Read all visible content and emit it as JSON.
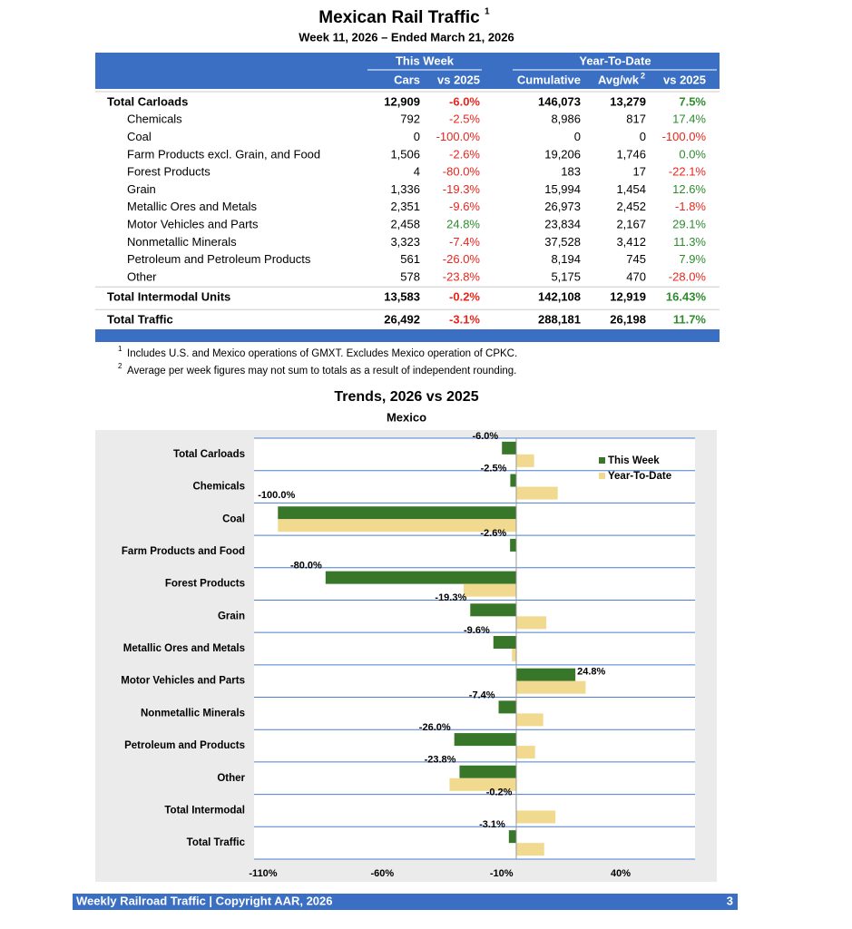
{
  "header": {
    "title": "Mexican Rail Traffic",
    "title_note": "1",
    "subtitle": "Week 11, 2026 – Ended March 21, 2026"
  },
  "table": {
    "groups": [
      "This Week",
      "Year-To-Date"
    ],
    "columns": [
      "Cars",
      "vs 2025",
      "Cumulative",
      "Avg/wk",
      "vs 2025"
    ],
    "avg_note": "2",
    "rows": [
      {
        "label": "Total Carloads",
        "bold": true,
        "cells": [
          "12,909",
          "-6.0%",
          "146,073",
          "13,279",
          "7.5%"
        ]
      },
      {
        "label": "Chemicals",
        "cells": [
          "792",
          "-2.5%",
          "8,986",
          "817",
          "17.4%"
        ]
      },
      {
        "label": "Coal",
        "cells": [
          "0",
          "-100.0%",
          "0",
          "0",
          "-100.0%"
        ]
      },
      {
        "label": "Farm Products excl. Grain, and Food",
        "cells": [
          "1,506",
          "-2.6%",
          "19,206",
          "1,746",
          "0.0%"
        ]
      },
      {
        "label": "Forest Products",
        "cells": [
          "4",
          "-80.0%",
          "183",
          "17",
          "-22.1%"
        ]
      },
      {
        "label": "Grain",
        "cells": [
          "1,336",
          "-19.3%",
          "15,994",
          "1,454",
          "12.6%"
        ]
      },
      {
        "label": "Metallic Ores and Metals",
        "cells": [
          "2,351",
          "-9.6%",
          "26,973",
          "2,452",
          "-1.8%"
        ]
      },
      {
        "label": "Motor Vehicles and Parts",
        "cells": [
          "2,458",
          "24.8%",
          "23,834",
          "2,167",
          "29.1%"
        ]
      },
      {
        "label": "Nonmetallic Minerals",
        "cells": [
          "3,323",
          "-7.4%",
          "37,528",
          "3,412",
          "11.3%"
        ]
      },
      {
        "label": "Petroleum and Petroleum Products",
        "cells": [
          "561",
          "-26.0%",
          "8,194",
          "745",
          "7.9%"
        ]
      },
      {
        "label": "Other",
        "cells": [
          "578",
          "-23.8%",
          "5,175",
          "470",
          "-28.0%"
        ]
      },
      {
        "label": "Total Intermodal Units",
        "bold": true,
        "cells": [
          "13,583",
          "-0.2%",
          "142,108",
          "12,919",
          "16.43%"
        ]
      },
      {
        "label": "Total Traffic",
        "bold": true,
        "cells": [
          "26,492",
          "-3.1%",
          "288,181",
          "26,198",
          "11.7%"
        ]
      }
    ]
  },
  "footnotes": [
    {
      "marker": "1",
      "text": "Includes U.S. and Mexico operations of GMXT. Excludes Mexico operation of CPKC."
    },
    {
      "marker": "2",
      "text": "Average per week figures may not sum to totals as a result of independent rounding."
    }
  ],
  "chart_data": {
    "type": "hbar",
    "title": "Trends, 2026 vs 2025",
    "subtitle": "Mexico",
    "categories": [
      "Total Carloads",
      "Chemicals",
      "Coal",
      "Farm Products and Food",
      "Forest Products",
      "Grain",
      "Metallic Ores and Metals",
      "Motor Vehicles and Parts",
      "Nonmetallic Minerals",
      "Petroleum and Products",
      "Other",
      "Total Intermodal",
      "Total Traffic"
    ],
    "series": [
      {
        "name": "This Week",
        "color": "#38762a",
        "values": [
          -6.0,
          -2.5,
          -100.0,
          -2.6,
          -80.0,
          -19.3,
          -9.6,
          24.8,
          -7.4,
          -26.0,
          -23.8,
          -0.2,
          -3.1
        ],
        "value_labels": [
          "-6.0%",
          "-2.5%",
          "-100.0%",
          "-2.6%",
          "-80.0%",
          "-19.3%",
          "-9.6%",
          "24.8%",
          "-7.4%",
          "-26.0%",
          "-23.8%",
          "-0.2%",
          "-3.1%"
        ]
      },
      {
        "name": "Year-To-Date",
        "color": "#f1da8f",
        "values": [
          7.5,
          17.4,
          -100.0,
          0.0,
          -22.1,
          12.6,
          -1.8,
          29.1,
          11.3,
          7.9,
          -28.0,
          16.43,
          11.7
        ]
      }
    ],
    "xlim": [
      -110,
      75
    ],
    "xticks": [
      {
        "value": -110,
        "label": "-110%"
      },
      {
        "value": -60,
        "label": "-60%"
      },
      {
        "value": -10,
        "label": "-10%"
      },
      {
        "value": 40,
        "label": "40%"
      }
    ],
    "legend": "upper right"
  },
  "footer": {
    "text": "Weekly Railroad Traffic | Copyright AAR, 2026",
    "page": "3"
  }
}
